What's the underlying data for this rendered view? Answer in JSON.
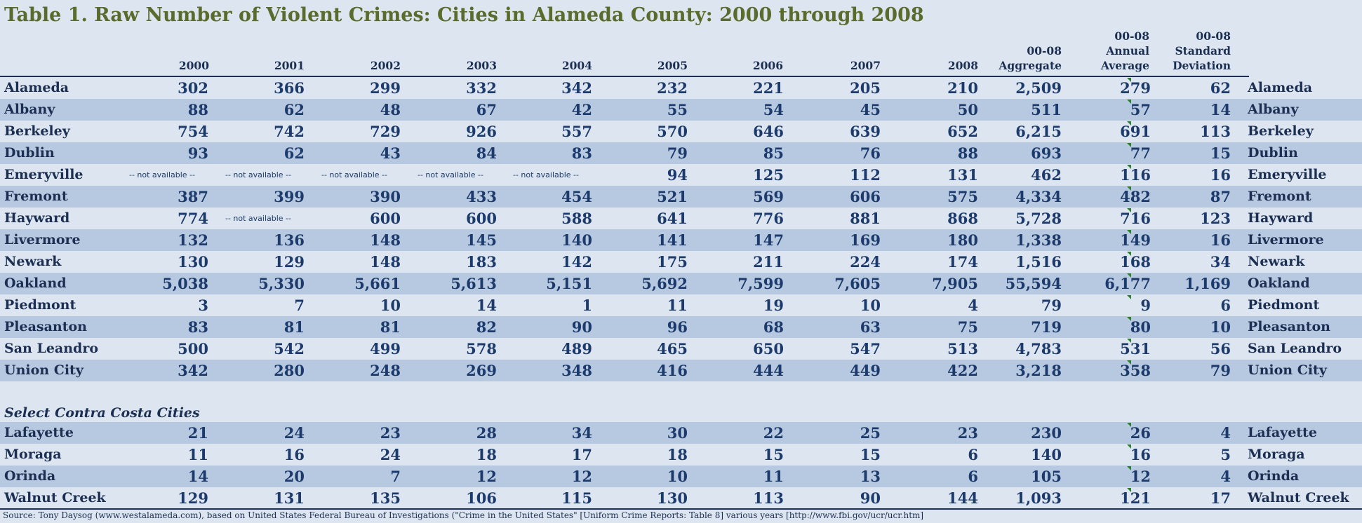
{
  "title": "Table 1. Raw Number of Violent Crimes: Cities in Alameda County: 2000 through 2008",
  "headers": {
    "y2000": "2000",
    "y2001": "2001",
    "y2002": "2002",
    "y2003": "2003",
    "y2004": "2004",
    "y2005": "2005",
    "y2006": "2006",
    "y2007": "2007",
    "y2008": "2008",
    "agg_l1": "00-08",
    "agg_l2": "Aggregate",
    "avg_l1": "00-08",
    "avg_l2": "Annual",
    "avg_l3": "Average",
    "sd_l1": "00-08",
    "sd_l2": "Standard",
    "sd_l3": "Deviation"
  },
  "alameda_rows": [
    {
      "city": "Alameda",
      "v": [
        "302",
        "366",
        "299",
        "332",
        "342",
        "232",
        "221",
        "205",
        "210",
        "2,509",
        "279",
        "62"
      ]
    },
    {
      "city": "Albany",
      "v": [
        "88",
        "62",
        "48",
        "67",
        "42",
        "55",
        "54",
        "45",
        "50",
        "511",
        "57",
        "14"
      ]
    },
    {
      "city": "Berkeley",
      "v": [
        "754",
        "742",
        "729",
        "926",
        "557",
        "570",
        "646",
        "639",
        "652",
        "6,215",
        "691",
        "113"
      ]
    },
    {
      "city": "Dublin",
      "v": [
        "93",
        "62",
        "43",
        "84",
        "83",
        "79",
        "85",
        "76",
        "88",
        "693",
        "77",
        "15"
      ]
    },
    {
      "city": "Emeryville",
      "v": [
        "-- not available --",
        "-- not available --",
        "-- not available --",
        "-- not available --",
        "-- not available --",
        "94",
        "125",
        "112",
        "131",
        "462",
        "116",
        "16"
      ]
    },
    {
      "city": "Fremont",
      "v": [
        "387",
        "399",
        "390",
        "433",
        "454",
        "521",
        "569",
        "606",
        "575",
        "4,334",
        "482",
        "87"
      ]
    },
    {
      "city": "Hayward",
      "v": [
        "774",
        "-- not available --",
        "600",
        "600",
        "588",
        "641",
        "776",
        "881",
        "868",
        "5,728",
        "716",
        "123"
      ]
    },
    {
      "city": "Livermore",
      "v": [
        "132",
        "136",
        "148",
        "145",
        "140",
        "141",
        "147",
        "169",
        "180",
        "1,338",
        "149",
        "16"
      ]
    },
    {
      "city": "Newark",
      "v": [
        "130",
        "129",
        "148",
        "183",
        "142",
        "175",
        "211",
        "224",
        "174",
        "1,516",
        "168",
        "34"
      ]
    },
    {
      "city": "Oakland",
      "v": [
        "5,038",
        "5,330",
        "5,661",
        "5,613",
        "5,151",
        "5,692",
        "7,599",
        "7,605",
        "7,905",
        "55,594",
        "6,177",
        "1,169"
      ]
    },
    {
      "city": "Piedmont",
      "v": [
        "3",
        "7",
        "10",
        "14",
        "1",
        "11",
        "19",
        "10",
        "4",
        "79",
        "9",
        "6"
      ]
    },
    {
      "city": "Pleasanton",
      "v": [
        "83",
        "81",
        "81",
        "82",
        "90",
        "96",
        "68",
        "63",
        "75",
        "719",
        "80",
        "10"
      ]
    },
    {
      "city": "San Leandro",
      "v": [
        "500",
        "542",
        "499",
        "578",
        "489",
        "465",
        "650",
        "547",
        "513",
        "4,783",
        "531",
        "56"
      ]
    },
    {
      "city": "Union City",
      "v": [
        "342",
        "280",
        "248",
        "269",
        "348",
        "416",
        "444",
        "449",
        "422",
        "3,218",
        "358",
        "79"
      ]
    }
  ],
  "section_label": "Select Contra Costa Cities",
  "contra_rows": [
    {
      "city": "Lafayette",
      "v": [
        "21",
        "24",
        "23",
        "28",
        "34",
        "30",
        "22",
        "25",
        "23",
        "230",
        "26",
        "4"
      ]
    },
    {
      "city": "Moraga",
      "v": [
        "11",
        "16",
        "24",
        "18",
        "17",
        "18",
        "15",
        "15",
        "6",
        "140",
        "16",
        "5"
      ]
    },
    {
      "city": "Orinda",
      "v": [
        "14",
        "20",
        "7",
        "12",
        "12",
        "10",
        "11",
        "13",
        "6",
        "105",
        "12",
        "4"
      ]
    },
    {
      "city": "Walnut Creek",
      "v": [
        "129",
        "131",
        "135",
        "106",
        "115",
        "130",
        "113",
        "90",
        "144",
        "1,093",
        "121",
        "17"
      ]
    }
  ],
  "source": "Source: Tony Daysog (www.westalameda.com), based on United States Federal Bureau of Investigations (\"Crime in the United States\" [Uniform Crime Reports: Table 8] various years [http://www.fbi.gov/ucr/ucr.htm]",
  "colors": {
    "title": "#5a6b2e",
    "text": "#1c2f52",
    "shade": "#b7c9e0",
    "background": "#dde6f0",
    "marker": "#2e7d32"
  }
}
